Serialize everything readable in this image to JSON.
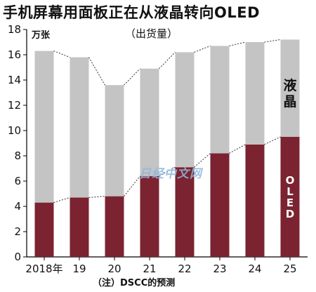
{
  "header": {
    "title": "手机屏幕用面板正在从液晶转向OLED",
    "unit": "万张",
    "subtitle": "（出货量）"
  },
  "footer": {
    "note": "（注）DSCC的预测"
  },
  "watermark": "日经中文网",
  "colors": {
    "lcd": "#c4c4c4",
    "oled": "#7b2330",
    "background": "#ffffff"
  },
  "chart_data": {
    "type": "bar",
    "stacked": true,
    "categories": [
      "2018年",
      "19",
      "20",
      "21",
      "22",
      "23",
      "24",
      "25"
    ],
    "series": [
      {
        "name": "OLED",
        "values": [
          4.3,
          4.7,
          4.8,
          6.4,
          7.1,
          8.2,
          8.9,
          9.5
        ]
      },
      {
        "name": "液晶",
        "values": [
          12.0,
          11.1,
          8.8,
          8.5,
          9.1,
          8.5,
          8.1,
          7.7
        ]
      }
    ],
    "totals": [
      16.3,
      15.8,
      13.6,
      14.9,
      16.2,
      16.7,
      17.0,
      17.2
    ],
    "ylim": [
      0,
      18
    ],
    "yticks": [
      0,
      2,
      4,
      6,
      8,
      10,
      12,
      14,
      16,
      18
    ],
    "grid": false
  }
}
